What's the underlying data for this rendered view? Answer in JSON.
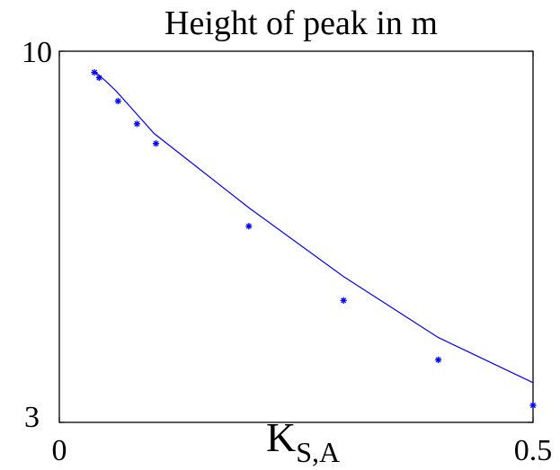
{
  "chart_data": {
    "type": "scatter",
    "title": "Height of peak in m",
    "xlabel": {
      "main": "K",
      "subscript": "S,A"
    },
    "ylabel": "",
    "xlim": [
      0,
      0.5
    ],
    "ylim": [
      3,
      10
    ],
    "x_tick_labels": [
      "0",
      "0.5"
    ],
    "y_tick_labels": [
      "3",
      "10"
    ],
    "grid": false,
    "color": "#0000ff",
    "series": [
      {
        "kind": "markers",
        "marker": "asterisk",
        "x": [
          0.037,
          0.042,
          0.062,
          0.082,
          0.102,
          0.2,
          0.3,
          0.4,
          0.5
        ],
        "y": [
          9.6,
          9.5,
          9.06,
          8.63,
          8.26,
          6.7,
          5.3,
          4.18,
          3.32
        ]
      },
      {
        "kind": "line",
        "x": [
          0.037,
          0.05,
          0.06,
          0.08,
          0.1,
          0.2,
          0.3,
          0.4,
          0.5
        ],
        "y": [
          9.62,
          9.42,
          9.25,
          8.85,
          8.45,
          7.05,
          5.75,
          4.6,
          3.75
        ]
      }
    ]
  }
}
